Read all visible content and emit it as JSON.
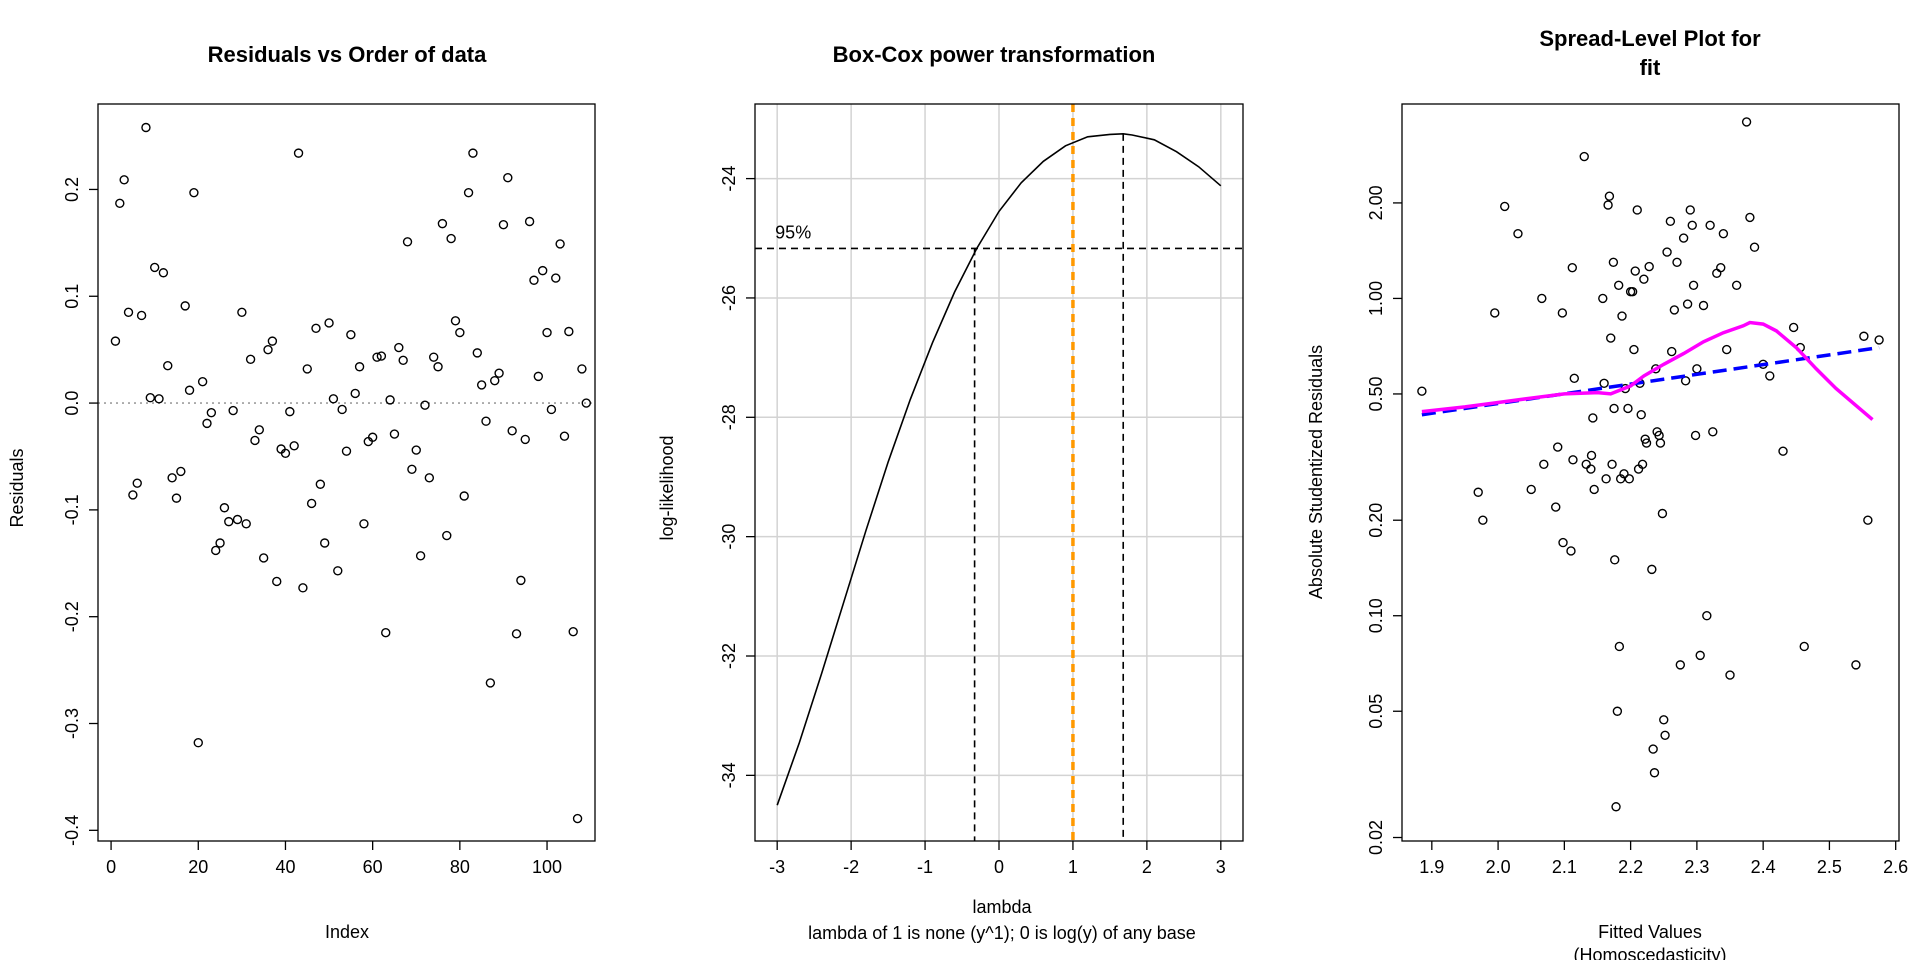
{
  "chart_data": [
    {
      "type": "scatter",
      "title": "Residuals vs Order of data",
      "xlabel": "Index",
      "ylabel": "Residuals",
      "xlim": [
        -3,
        111
      ],
      "ylim": [
        -0.41,
        0.28
      ],
      "xticks": [
        0,
        20,
        40,
        60,
        80,
        100
      ],
      "yticks": [
        -0.4,
        -0.3,
        -0.2,
        -0.1,
        0.0,
        0.1,
        0.2
      ],
      "yticklabels": [
        "-0.4",
        "-0.3",
        "-0.2",
        "-0.1",
        "0.0",
        "0.1",
        "0.2"
      ],
      "reference_line": {
        "y": 0,
        "style": "dotted",
        "color": "#aaaaaa"
      },
      "x": [
        1,
        2,
        3,
        4,
        5,
        6,
        7,
        8,
        9,
        10,
        11,
        12,
        13,
        14,
        15,
        16,
        17,
        18,
        19,
        20,
        21,
        22,
        23,
        24,
        25,
        26,
        27,
        28,
        29,
        30,
        31,
        32,
        33,
        34,
        35,
        36,
        37,
        38,
        39,
        40,
        41,
        42,
        43,
        44,
        45,
        46,
        47,
        48,
        49,
        50,
        51,
        52,
        53,
        54,
        55,
        56,
        57,
        58,
        59,
        60,
        61,
        62,
        63,
        64,
        65,
        66,
        67,
        68,
        69,
        70,
        71,
        72,
        73,
        74,
        75,
        76,
        77,
        78,
        79,
        80,
        81,
        82,
        83,
        84,
        85,
        86,
        87,
        88,
        89,
        90,
        91,
        92,
        93,
        94,
        95,
        96,
        97,
        98,
        99,
        100,
        101,
        102,
        103,
        104,
        105,
        106,
        107,
        108,
        109
      ],
      "y": [
        0.058,
        0.187,
        0.209,
        0.085,
        -0.086,
        -0.075,
        0.082,
        0.258,
        0.005,
        0.127,
        0.004,
        0.122,
        0.035,
        -0.07,
        -0.089,
        -0.064,
        0.091,
        0.012,
        0.197,
        -0.318,
        0.02,
        -0.019,
        -0.009,
        -0.138,
        -0.131,
        -0.098,
        -0.111,
        -0.007,
        -0.109,
        0.085,
        -0.113,
        0.041,
        -0.035,
        -0.025,
        -0.145,
        0.05,
        0.058,
        -0.167,
        -0.043,
        -0.047,
        -0.008,
        -0.04,
        0.234,
        -0.173,
        0.032,
        -0.094,
        0.07,
        -0.076,
        -0.131,
        0.075,
        0.004,
        -0.157,
        -0.006,
        -0.045,
        0.064,
        0.009,
        0.034,
        -0.113,
        -0.036,
        -0.032,
        0.043,
        0.044,
        -0.215,
        0.003,
        -0.029,
        0.052,
        0.04,
        0.151,
        -0.062,
        -0.044,
        -0.143,
        -0.002,
        -0.07,
        0.043,
        0.034,
        0.168,
        -0.124,
        0.154,
        0.077,
        0.066,
        -0.087,
        0.197,
        0.234,
        0.047,
        0.017,
        -0.017,
        -0.262,
        0.021,
        0.028,
        0.167,
        0.211,
        -0.026,
        -0.216,
        -0.166,
        -0.034,
        0.17,
        0.115,
        0.025,
        0.124,
        0.066,
        -0.006,
        0.117,
        0.149,
        -0.031,
        0.067,
        -0.214,
        -0.389,
        0.032,
        0.0
      ]
    },
    {
      "type": "line",
      "title": "Box-Cox power transformation",
      "xlabel": "lambda",
      "xlabel2": "lambda of 1 is none (y^1); 0 is log(y) of any base",
      "ylabel": "log-likelihood",
      "xlim": [
        -3.3,
        3.3
      ],
      "ylim": [
        -35.1,
        -22.75
      ],
      "xticks": [
        -3,
        -2,
        -1,
        0,
        1,
        2,
        3
      ],
      "yticks": [
        -34,
        -32,
        -30,
        -28,
        -26,
        -24
      ],
      "grid": true,
      "curve": {
        "x": [
          -3.0,
          -2.7,
          -2.4,
          -2.1,
          -1.8,
          -1.5,
          -1.2,
          -0.9,
          -0.6,
          -0.3,
          0.0,
          0.3,
          0.6,
          0.9,
          1.2,
          1.5,
          1.68,
          1.8,
          2.1,
          2.4,
          2.7,
          3.0
        ],
        "y": [
          -34.5,
          -33.45,
          -32.3,
          -31.1,
          -29.9,
          -28.75,
          -27.7,
          -26.75,
          -25.9,
          -25.17,
          -24.55,
          -24.07,
          -23.71,
          -23.45,
          -23.3,
          -23.26,
          -23.25,
          -23.27,
          -23.35,
          -23.55,
          -23.8,
          -24.12
        ]
      },
      "ci_label": "95%",
      "ci_level": -25.17,
      "ci_lower": -0.33,
      "lambda_hat": 1.68,
      "reference_lambda": 1,
      "colors": {
        "reference": "#ff9900"
      }
    },
    {
      "type": "scatter",
      "title_lines": [
        "Spread-Level Plot for",
        "fit"
      ],
      "xlabel_lines": [
        "Fitted Values",
        "(Homoscedasticity)"
      ],
      "ylabel": "Absolute Studentized Residuals",
      "log_y": true,
      "xlim": [
        1.855,
        2.605
      ],
      "ylim": [
        0.0195,
        4.1
      ],
      "xticks": [
        1.9,
        2.0,
        2.1,
        2.2,
        2.3,
        2.4,
        2.5,
        2.6
      ],
      "xticklabels": [
        "1.9",
        "2.0",
        "2.1",
        "2.2",
        "2.3",
        "2.4",
        "2.5",
        "2.6"
      ],
      "yticks": [
        0.02,
        0.05,
        0.1,
        0.2,
        0.5,
        1.0,
        2.0
      ],
      "yticklabels": [
        "0.02",
        "0.05",
        "0.10",
        "0.20",
        "0.50",
        "1.00",
        "2.00"
      ],
      "x": [
        1.885,
        1.97,
        1.977,
        1.995,
        2.01,
        2.03,
        2.05,
        2.066,
        2.069,
        2.087,
        2.09,
        2.097,
        2.098,
        2.11,
        2.112,
        2.113,
        2.115,
        2.13,
        2.133,
        2.14,
        2.141,
        2.143,
        2.145,
        2.158,
        2.16,
        2.163,
        2.166,
        2.168,
        2.17,
        2.172,
        2.174,
        2.175,
        2.176,
        2.178,
        2.18,
        2.182,
        2.183,
        2.185,
        2.187,
        2.19,
        2.192,
        2.196,
        2.198,
        2.2,
        2.203,
        2.205,
        2.207,
        2.21,
        2.212,
        2.214,
        2.216,
        2.218,
        2.22,
        2.222,
        2.224,
        2.228,
        2.232,
        2.234,
        2.236,
        2.238,
        2.24,
        2.243,
        2.245,
        2.248,
        2.25,
        2.252,
        2.255,
        2.26,
        2.262,
        2.266,
        2.27,
        2.275,
        2.28,
        2.283,
        2.286,
        2.29,
        2.293,
        2.295,
        2.298,
        2.3,
        2.305,
        2.31,
        2.315,
        2.32,
        2.324,
        2.33,
        2.336,
        2.34,
        2.345,
        2.35,
        2.36,
        2.375,
        2.38,
        2.387,
        2.4,
        2.41,
        2.43,
        2.446,
        2.456,
        2.462,
        2.54,
        2.552,
        2.558,
        2.575
      ],
      "y": [
        0.51,
        0.245,
        0.2,
        0.9,
        1.95,
        1.6,
        0.25,
        1.0,
        0.3,
        0.22,
        0.34,
        0.9,
        0.17,
        0.16,
        1.25,
        0.31,
        0.56,
        2.8,
        0.3,
        0.29,
        0.32,
        0.42,
        0.25,
        1.0,
        0.54,
        0.27,
        1.97,
        2.1,
        0.75,
        0.3,
        1.3,
        0.45,
        0.15,
        0.025,
        0.05,
        1.1,
        0.08,
        0.27,
        0.88,
        0.28,
        0.52,
        0.45,
        0.27,
        1.05,
        1.05,
        0.69,
        1.22,
        1.9,
        0.29,
        0.54,
        0.43,
        0.3,
        1.15,
        0.36,
        0.35,
        1.26,
        0.14,
        0.038,
        0.032,
        0.6,
        0.38,
        0.37,
        0.35,
        0.21,
        0.047,
        0.042,
        1.4,
        1.75,
        0.68,
        0.92,
        1.3,
        0.07,
        1.55,
        0.55,
        0.96,
        1.9,
        1.7,
        1.1,
        0.37,
        0.6,
        0.075,
        0.95,
        0.1,
        1.7,
        0.38,
        1.2,
        1.25,
        1.6,
        0.69,
        0.065,
        1.1,
        3.6,
        1.8,
        1.45,
        0.62,
        0.57,
        0.33,
        0.81,
        0.7,
        0.08,
        0.07,
        0.76,
        0.2,
        0.74
      ],
      "fit_line": {
        "x": [
          1.885,
          2.575
        ],
        "y": [
          0.43,
          0.7
        ],
        "style": "dashed",
        "color": "#0000ff"
      },
      "smooth_line": {
        "x": [
          1.885,
          1.95,
          2.0,
          2.05,
          2.1,
          2.15,
          2.17,
          2.2,
          2.22,
          2.25,
          2.28,
          2.31,
          2.34,
          2.37,
          2.38,
          2.4,
          2.42,
          2.45,
          2.48,
          2.51,
          2.54,
          2.565
        ],
        "y": [
          0.44,
          0.455,
          0.47,
          0.485,
          0.5,
          0.505,
          0.5,
          0.53,
          0.57,
          0.62,
          0.67,
          0.73,
          0.78,
          0.82,
          0.84,
          0.83,
          0.79,
          0.7,
          0.6,
          0.52,
          0.46,
          0.415
        ],
        "color": "#ff00ff"
      }
    }
  ]
}
